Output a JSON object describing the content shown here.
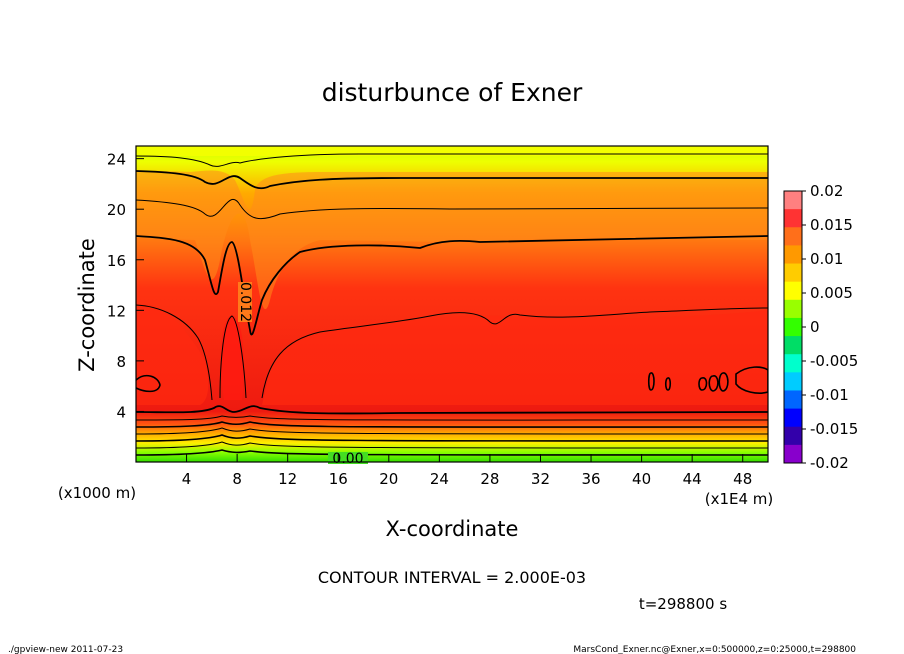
{
  "chart_data": {
    "type": "heatmap",
    "title": "disturbunce of Exner",
    "xlabel": "X-coordinate",
    "ylabel": "Z-coordinate",
    "x_unit_note": "(x1E4 m)",
    "z_unit_note": "(x1000 m)",
    "x_range": [
      0,
      50
    ],
    "z_range": [
      0,
      25
    ],
    "x_ticks": [
      4,
      8,
      12,
      16,
      20,
      24,
      28,
      32,
      36,
      40,
      44,
      48
    ],
    "z_ticks": [
      4,
      8,
      12,
      16,
      20,
      24
    ],
    "contour_labels": [
      {
        "text": "0.012",
        "x": 8.8,
        "z": 13.5,
        "rotate": 90
      },
      {
        "text": "0.00",
        "x": 16.6,
        "z": 0.2,
        "rotate": 0
      }
    ],
    "colorbar": {
      "ticks": [
        "0.02",
        "0.015",
        "0.01",
        "0.005",
        "0",
        "-0.005",
        "-0.01",
        "-0.015",
        "-0.02"
      ],
      "colors": [
        "#ff8080",
        "#ff3333",
        "#ff6f1a",
        "#ff9900",
        "#ffcc00",
        "#ffff00",
        "#99ff00",
        "#33ff00",
        "#00dd66",
        "#00ffcc",
        "#00ccff",
        "#0066ff",
        "#0000ff",
        "#3300aa",
        "#8800cc"
      ]
    },
    "contour_interval": "CONTOUR INTERVAL = 2.000E-03",
    "time": "t=298800 s"
  },
  "footer": {
    "left": "./gpview-new  2011-07-23",
    "right": "MarsCond_Exner.nc@Exner,x=0:500000,z=0:25000,t=298800"
  }
}
